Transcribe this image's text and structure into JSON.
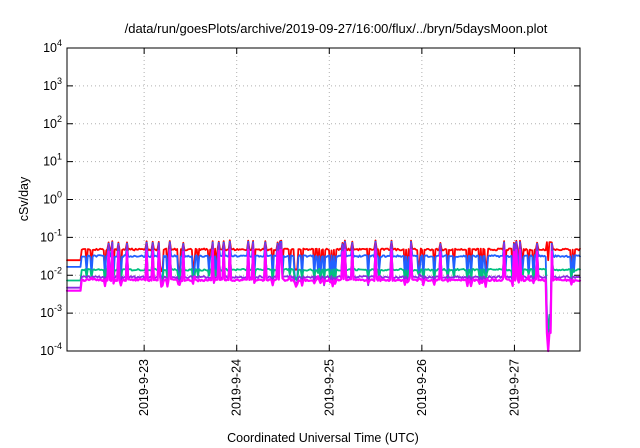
{
  "chart_data": {
    "type": "line",
    "title": "/data/run/goesPlots/archive/2019-09-27/16:00/flux/../bryn/5daysMoon.plot",
    "xlabel": "Coordinated Universal Time (UTC)",
    "ylabel": "cSv/day",
    "yscale": "log",
    "ylim": [
      0.0001,
      10000
    ],
    "y_ticks": [
      {
        "base": "10",
        "exp": "-4",
        "value": 0.0001
      },
      {
        "base": "10",
        "exp": "-3",
        "value": 0.001
      },
      {
        "base": "10",
        "exp": "-2",
        "value": 0.01
      },
      {
        "base": "10",
        "exp": "-1",
        "value": 0.1
      },
      {
        "base": "10",
        "exp": "0",
        "value": 1
      },
      {
        "base": "10",
        "exp": "1",
        "value": 10
      },
      {
        "base": "10",
        "exp": "2",
        "value": 100
      },
      {
        "base": "10",
        "exp": "3",
        "value": 1000
      },
      {
        "base": "10",
        "exp": "4",
        "value": 10000
      }
    ],
    "xlim": [
      "2019-09-22 04:00",
      "2019-09-27 17:00"
    ],
    "x_ticks": [
      "2019-9-23",
      "2019-9-24",
      "2019-9-25",
      "2019-9-26",
      "2019-9-27"
    ],
    "grid": true,
    "legend": "none",
    "series": [
      {
        "color": "#ff0000",
        "baseline": 0.048,
        "spike": 0.07,
        "low": 0.012,
        "end_drop": 0.025
      },
      {
        "color": "#2060ff",
        "baseline": 0.032,
        "spike": 0.065,
        "low": 0.008,
        "end_drop": 0.0003
      },
      {
        "color": "#00c080",
        "baseline": 0.014,
        "spike": 0.03,
        "low": 0.007,
        "end_drop": 0.0003
      },
      {
        "color": "#8a2be2",
        "baseline": 0.009,
        "spike": 0.06,
        "low": 0.006,
        "end_drop": 0.00012
      },
      {
        "color": "#ff00ff",
        "baseline": 0.0075,
        "spike": 0.04,
        "low": 0.0055,
        "end_drop": 0.0001
      }
    ]
  }
}
